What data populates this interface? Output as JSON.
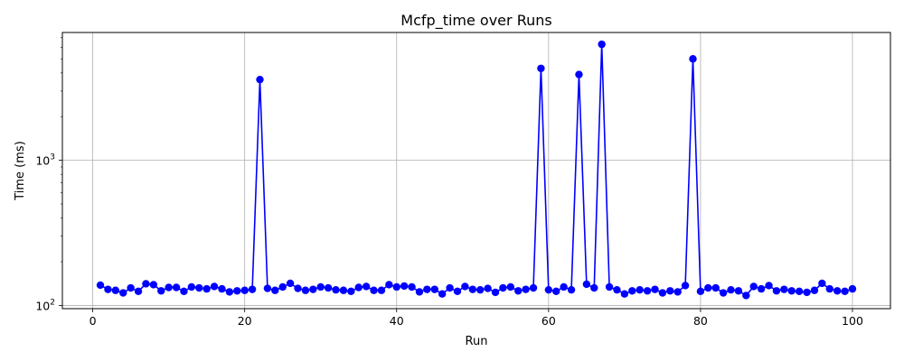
{
  "chart_data": {
    "type": "line",
    "title": "Mcfp_time over Runs",
    "xlabel": "Run",
    "ylabel": "Time (ms)",
    "yscale": "log",
    "xlim": [
      -4,
      105
    ],
    "ylim": [
      95,
      7600
    ],
    "grid": true,
    "marker": "circle",
    "color": "#0000ff",
    "x_ticks": [
      0,
      20,
      40,
      60,
      80,
      100
    ],
    "y_ticks": [
      {
        "value": 100,
        "base": "10",
        "exp": "2"
      },
      {
        "value": 1000,
        "base": "10",
        "exp": "3"
      }
    ],
    "series": [
      {
        "x": [
          1,
          2,
          3,
          4,
          5,
          6,
          7,
          8,
          9,
          10,
          11,
          12,
          13,
          14,
          15,
          16,
          17,
          18,
          19,
          20,
          21,
          22,
          23,
          24,
          25,
          26,
          27,
          28,
          29,
          30,
          31,
          32,
          33,
          34,
          35,
          36,
          37,
          38,
          39,
          40,
          41,
          42,
          43,
          44,
          45,
          46,
          47,
          48,
          49,
          50,
          51,
          52,
          53,
          54,
          55,
          56,
          57,
          58,
          59,
          60,
          61,
          62,
          63,
          64,
          65,
          66,
          67,
          68,
          69,
          70,
          71,
          72,
          73,
          74,
          75,
          76,
          77,
          78,
          79,
          80,
          81,
          82,
          83,
          84,
          85,
          86,
          87,
          88,
          89,
          90,
          91,
          92,
          93,
          94,
          95,
          96,
          97,
          98,
          99,
          100
        ],
        "values": [
          138,
          129,
          127,
          122,
          132,
          125,
          141,
          139,
          126,
          133,
          133,
          125,
          134,
          132,
          130,
          135,
          130,
          124,
          126,
          127,
          129,
          3600,
          131,
          127,
          134,
          142,
          131,
          127,
          129,
          134,
          132,
          128,
          127,
          125,
          133,
          135,
          127,
          127,
          139,
          134,
          136,
          134,
          124,
          129,
          129,
          120,
          132,
          125,
          135,
          129,
          128,
          131,
          123,
          132,
          134,
          126,
          129,
          132,
          4300,
          128,
          125,
          134,
          128,
          3900,
          140,
          132,
          6300,
          134,
          128,
          120,
          126,
          128,
          126,
          129,
          122,
          126,
          124,
          137,
          5000,
          125,
          132,
          132,
          122,
          128,
          126,
          117,
          135,
          130,
          137,
          126,
          129,
          126,
          125,
          123,
          127,
          142,
          130,
          126,
          125,
          130
        ]
      }
    ]
  }
}
